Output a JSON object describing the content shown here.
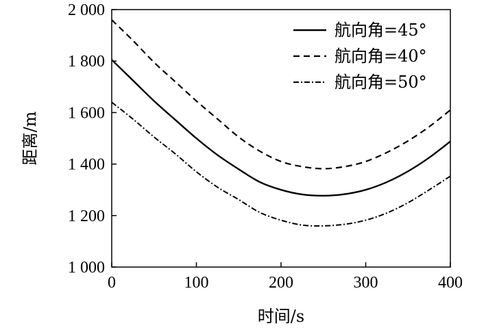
{
  "chart_data": {
    "type": "line",
    "title": "",
    "xlabel": "时间/s",
    "ylabel": "距离/m",
    "xlim": [
      0,
      400
    ],
    "ylim": [
      1000,
      2000
    ],
    "xticks": [
      0,
      100,
      200,
      300,
      400
    ],
    "xtick_labels": [
      "0",
      "100",
      "200",
      "300",
      "400"
    ],
    "yticks": [
      1000,
      1200,
      1400,
      1600,
      1800,
      2000
    ],
    "ytick_labels": [
      "1 000",
      "1 200",
      "1 400",
      "1 600",
      "1 800",
      "2 000"
    ],
    "grid": false,
    "legend_position": "top-right",
    "x": [
      0,
      25,
      50,
      75,
      100,
      125,
      150,
      175,
      200,
      225,
      250,
      275,
      300,
      325,
      350,
      375,
      400
    ],
    "series": [
      {
        "name": "航向角=45°",
        "style": "solid",
        "values": [
          1805,
          1725,
          1645,
          1572,
          1500,
          1435,
          1380,
          1330,
          1300,
          1282,
          1277,
          1283,
          1300,
          1330,
          1372,
          1425,
          1488
        ]
      },
      {
        "name": "航向角=40°",
        "style": "dashed",
        "values": [
          1960,
          1880,
          1795,
          1720,
          1645,
          1575,
          1505,
          1450,
          1410,
          1390,
          1382,
          1390,
          1410,
          1445,
          1490,
          1545,
          1610
        ]
      },
      {
        "name": "航向角=50°",
        "style": "dashdot",
        "values": [
          1640,
          1575,
          1505,
          1440,
          1370,
          1310,
          1262,
          1212,
          1182,
          1163,
          1160,
          1166,
          1182,
          1210,
          1250,
          1300,
          1353
        ]
      }
    ]
  }
}
